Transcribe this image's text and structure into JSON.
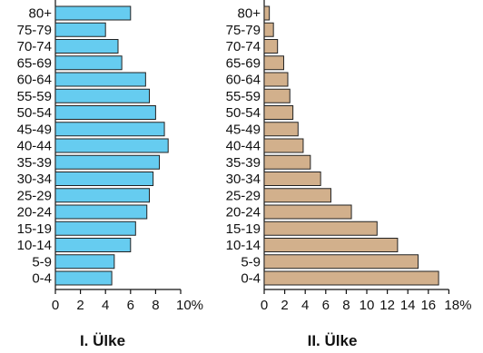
{
  "chart_data": [
    {
      "type": "bar",
      "orientation": "horizontal",
      "title": "I. Ülke",
      "categories": [
        "80+",
        "75-79",
        "70-74",
        "65-69",
        "60-64",
        "55-59",
        "50-54",
        "45-49",
        "40-44",
        "35-39",
        "30-34",
        "25-29",
        "20-24",
        "15-19",
        "10-14",
        "5-9",
        "0-4"
      ],
      "values": [
        6.0,
        4.0,
        5.0,
        5.3,
        7.2,
        7.5,
        8.0,
        8.7,
        9.0,
        8.3,
        7.8,
        7.5,
        7.3,
        6.4,
        6.0,
        4.7,
        4.5
      ],
      "xticks": [
        "0",
        "2",
        "4",
        "6",
        "8",
        "10%"
      ],
      "xlim": [
        0,
        10
      ],
      "bar_color": "#66ccf0"
    },
    {
      "type": "bar",
      "orientation": "horizontal",
      "title": "II. Ülke",
      "categories": [
        "80+",
        "75-79",
        "70-74",
        "65-69",
        "60-64",
        "55-59",
        "50-54",
        "45-49",
        "40-44",
        "35-39",
        "30-34",
        "25-29",
        "20-24",
        "15-19",
        "10-14",
        "5-9",
        "0-4"
      ],
      "values": [
        0.5,
        0.9,
        1.3,
        1.9,
        2.3,
        2.5,
        2.8,
        3.3,
        3.8,
        4.5,
        5.5,
        6.5,
        8.5,
        11.0,
        13.0,
        15.0,
        17.0
      ],
      "xticks": [
        "0",
        "2",
        "4",
        "6",
        "8",
        "10",
        "12",
        "14",
        "16",
        "18%"
      ],
      "xlim": [
        0,
        18
      ],
      "bar_color": "#d2b08c"
    }
  ]
}
